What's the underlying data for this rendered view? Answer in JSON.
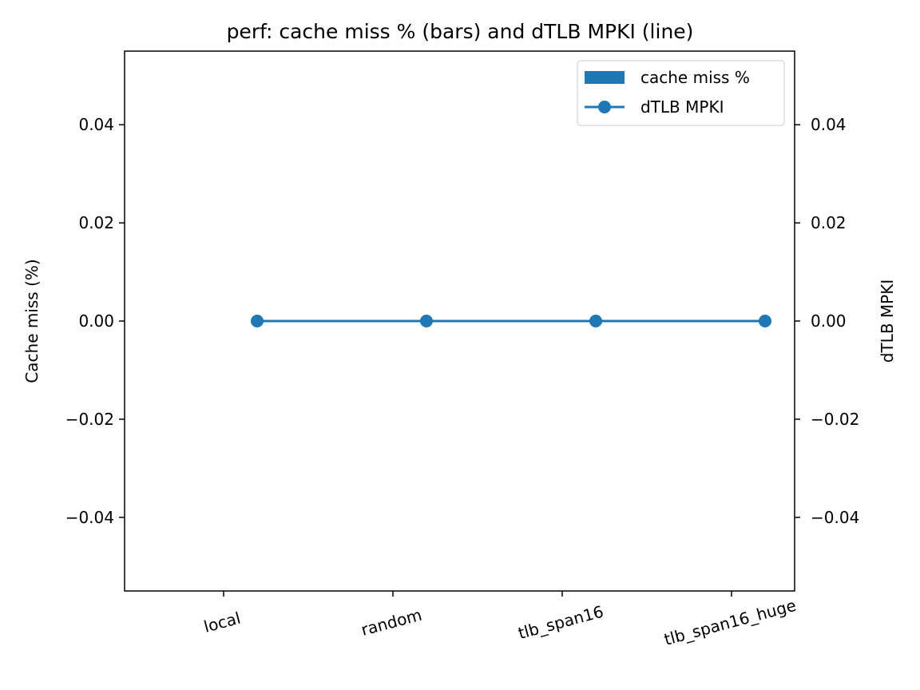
{
  "chart_data": {
    "type": "bar",
    "title": "perf: cache miss % (bars) and dTLB MPKI (line)",
    "xlabel": "",
    "ylabel": "Cache miss (%)",
    "y2label": "dTLB MPKI",
    "categories": [
      "local",
      "random",
      "tlb_span16",
      "tlb_span16_huge"
    ],
    "series": [
      {
        "name": "cache miss %",
        "kind": "bar",
        "axis": "left",
        "values": [
          0,
          0,
          0,
          0
        ]
      },
      {
        "name": "dTLB MPKI",
        "kind": "line",
        "axis": "right",
        "values": [
          0,
          0,
          0,
          0
        ]
      }
    ],
    "ylim": [
      -0.055,
      0.055
    ],
    "y2lim": [
      -0.055,
      0.055
    ],
    "yticks": [
      "0.04",
      "0.02",
      "0.00",
      "−0.02",
      "−0.04"
    ],
    "ytick_values": [
      0.04,
      0.02,
      0,
      -0.02,
      -0.04
    ],
    "grid": false,
    "legend_position": "upper right",
    "colors": {
      "series": "#1f77b4",
      "axes": "#000000",
      "legend_border": "#cccccc"
    }
  }
}
